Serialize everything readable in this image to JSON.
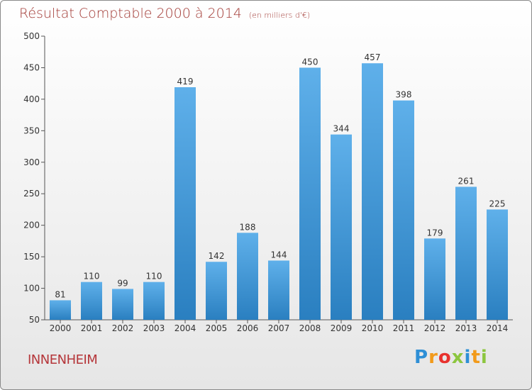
{
  "chart_data": {
    "type": "bar",
    "title": "Résultat Comptable 2000 à 2014",
    "unit": "(en milliers d'€)",
    "categories": [
      "2000",
      "2001",
      "2002",
      "2003",
      "2004",
      "2005",
      "2006",
      "2007",
      "2008",
      "2009",
      "2010",
      "2011",
      "2012",
      "2013",
      "2014"
    ],
    "values": [
      81,
      110,
      99,
      110,
      419,
      142,
      188,
      144,
      450,
      344,
      457,
      398,
      179,
      261,
      225
    ],
    "ylim": [
      50,
      500
    ],
    "yticks": [
      50,
      100,
      150,
      200,
      250,
      300,
      350,
      400,
      450,
      500
    ],
    "grid": false,
    "bar_color_top": "#5fb0ea",
    "bar_color_bottom": "#2a7fc0"
  },
  "commune": "INNENHEIM",
  "brand": "Proxiti"
}
